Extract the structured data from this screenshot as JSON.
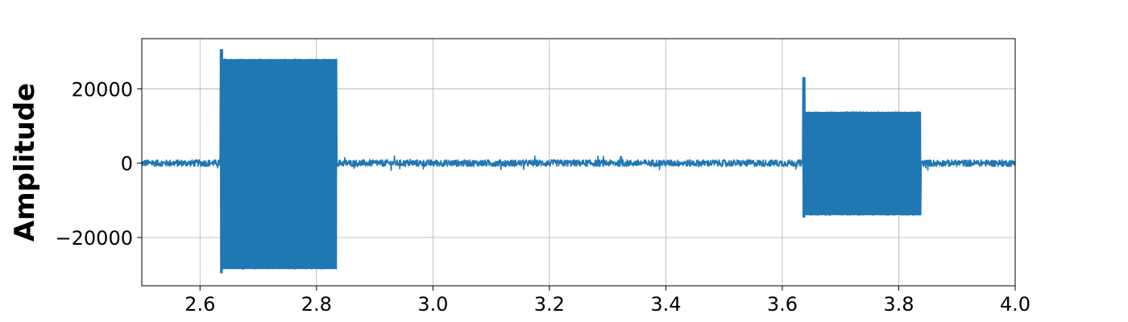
{
  "chart_data": {
    "type": "line",
    "title": "",
    "xlabel": "",
    "ylabel": "Amplitude",
    "xlim": [
      2.5,
      4.0
    ],
    "ylim": [
      -33000,
      33500
    ],
    "grid": true,
    "x_ticks": [
      2.6,
      2.8,
      3.0,
      3.2,
      3.4,
      3.6,
      3.8,
      4.0
    ],
    "x_tick_labels": [
      "2.6",
      "2.8",
      "3.0",
      "3.2",
      "3.4",
      "3.6",
      "3.8",
      "4.0"
    ],
    "y_ticks": [
      -20000,
      0,
      20000
    ],
    "y_tick_labels": [
      "−20000",
      "0",
      "20000"
    ],
    "series": [
      {
        "color": "#1f77b4",
        "description": "waveform: low noise floor with two high-amplitude tone bursts",
        "noise_floor_amplitude": 900,
        "bursts": [
          {
            "start": 2.635,
            "end": 2.835,
            "envelope_upper": 28000,
            "envelope_lower": -28500,
            "onset_peak": 30500,
            "onset_trough": -29500
          },
          {
            "start": 3.635,
            "end": 3.838,
            "envelope_upper": 13800,
            "envelope_lower": -14000,
            "onset_peak": 23000,
            "onset_trough": -14500
          }
        ]
      }
    ]
  }
}
